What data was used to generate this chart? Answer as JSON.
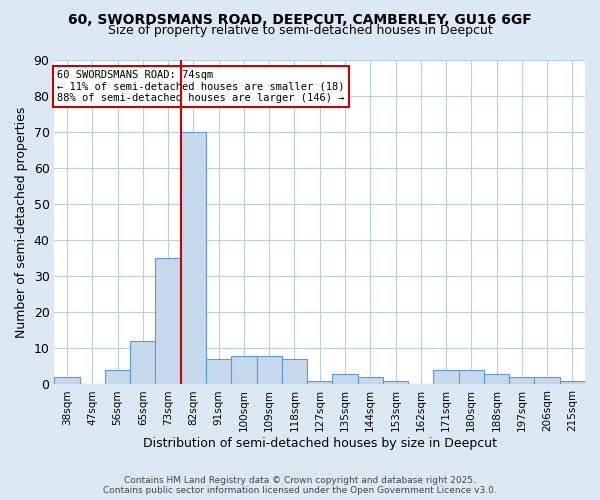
{
  "title_line1": "60, SWORDSMANS ROAD, DEEPCUT, CAMBERLEY, GU16 6GF",
  "title_line2": "Size of property relative to semi-detached houses in Deepcut",
  "xlabel": "Distribution of semi-detached houses by size in Deepcut",
  "ylabel": "Number of semi-detached properties",
  "bin_labels": [
    "38sqm",
    "47sqm",
    "56sqm",
    "65sqm",
    "73sqm",
    "82sqm",
    "91sqm",
    "100sqm",
    "109sqm",
    "118sqm",
    "127sqm",
    "135sqm",
    "144sqm",
    "153sqm",
    "162sqm",
    "171sqm",
    "180sqm",
    "188sqm",
    "197sqm",
    "206sqm",
    "215sqm"
  ],
  "bin_values": [
    2,
    0,
    4,
    12,
    35,
    70,
    7,
    8,
    8,
    7,
    1,
    3,
    2,
    1,
    0,
    4,
    4,
    3,
    2,
    2,
    1
  ],
  "bar_color": "#c6d9ec",
  "bar_edge_color": "#5b9bd5",
  "vline_x_bin": 4,
  "annotation_title": "60 SWORDSMANS ROAD: 74sqm",
  "annotation_line2": "← 11% of semi-detached houses are smaller (18)",
  "annotation_line3": "88% of semi-detached houses are larger (146) →",
  "annotation_box_color": "#ffffff",
  "annotation_box_edge": "#cc0000",
  "vline_color": "#cc0000",
  "grid_color": "#b8cfe0",
  "ylim": [
    0,
    90
  ],
  "yticks": [
    0,
    10,
    20,
    30,
    40,
    50,
    60,
    70,
    80,
    90
  ],
  "footer_line1": "Contains HM Land Registry data © Crown copyright and database right 2025.",
  "footer_line2": "Contains public sector information licensed under the Open Government Licence v3.0.",
  "bg_color": "#dce9f5",
  "plot_bg_color": "#ffffff"
}
